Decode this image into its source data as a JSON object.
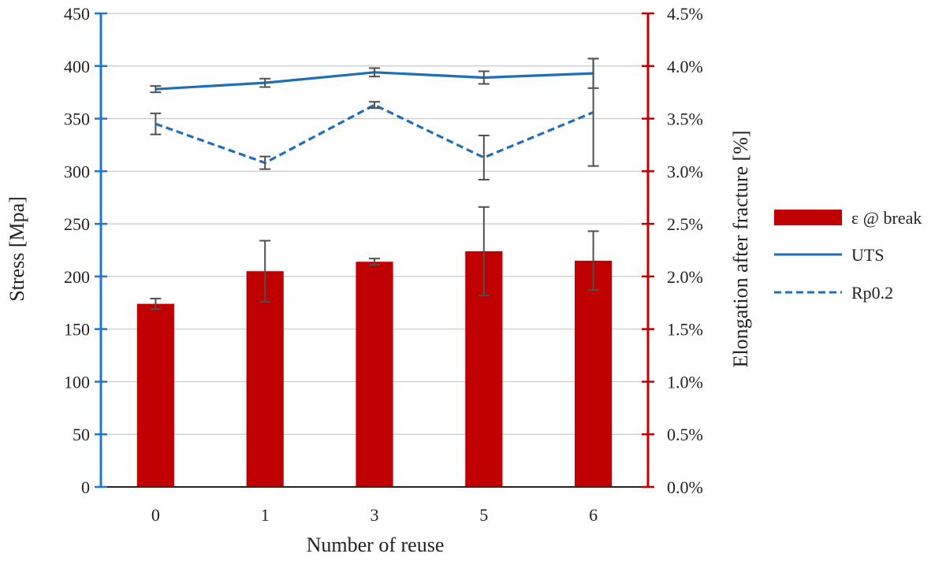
{
  "chart_data": {
    "type": "bar",
    "title": "",
    "xlabel": "Number of reuse",
    "ylabel_left": "Stress [Mpa]",
    "ylabel_right": "Elongation after fracture [%]",
    "categories": [
      "0",
      "1",
      "3",
      "5",
      "6"
    ],
    "ylim_left": [
      0,
      450
    ],
    "ylim_right": [
      0,
      4.5
    ],
    "left_ticks": [
      0,
      50,
      100,
      150,
      200,
      250,
      300,
      350,
      400,
      450
    ],
    "right_ticks": [
      0,
      0.5,
      1.0,
      1.5,
      2.0,
      2.5,
      3.0,
      3.5,
      4.0,
      4.5
    ],
    "right_tick_labels": [
      "0.0%",
      "0.5%",
      "1.0%",
      "1.5%",
      "2.0%",
      "2.5%",
      "3.0%",
      "3.5%",
      "4.0%",
      "4.5%"
    ],
    "grid": true,
    "legend_position": "right",
    "series": [
      {
        "name": "ε @ break",
        "kind": "bar",
        "axis": "right",
        "color": "#c00000",
        "values": [
          1.74,
          2.05,
          2.14,
          2.24,
          2.15
        ],
        "error": [
          0.05,
          0.29,
          0.03,
          0.42,
          0.28
        ]
      },
      {
        "name": "UTS",
        "kind": "line",
        "style": "solid",
        "axis": "left",
        "color": "#1f6fb8",
        "values": [
          378,
          384,
          394,
          389,
          393
        ],
        "error": [
          3,
          4,
          4,
          6,
          14
        ]
      },
      {
        "name": "Rp0.2",
        "kind": "line",
        "style": "dashed",
        "axis": "left",
        "color": "#1f6fb8",
        "values": [
          345,
          308,
          363,
          313,
          356
        ],
        "error": [
          10,
          6,
          3,
          21,
          51
        ]
      }
    ],
    "colors": {
      "left_axis": "#1f77c8",
      "right_axis": "#c00000",
      "grid": "#c8c8c8",
      "error_bar": "#505050"
    }
  }
}
